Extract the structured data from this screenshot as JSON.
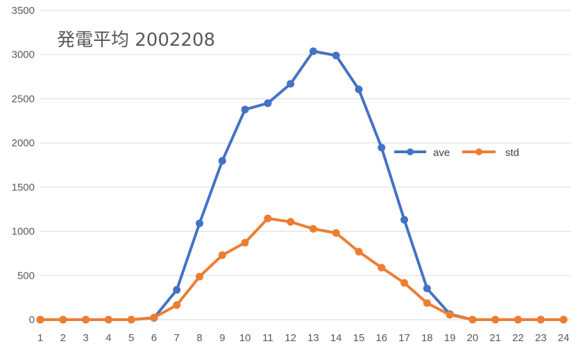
{
  "chart_data": {
    "type": "line",
    "title": "発電平均 2002208",
    "xlabel": "",
    "ylabel": "",
    "categories": [
      "1",
      "2",
      "3",
      "4",
      "5",
      "6",
      "7",
      "8",
      "9",
      "10",
      "11",
      "12",
      "13",
      "14",
      "15",
      "16",
      "17",
      "18",
      "19",
      "20",
      "21",
      "22",
      "23",
      "24"
    ],
    "ylim": [
      0,
      3500
    ],
    "yticks": [
      "0",
      "500",
      "1000",
      "1500",
      "2000",
      "2500",
      "3000",
      "3500"
    ],
    "grid": true,
    "legend_position": "right",
    "series": [
      {
        "name": "ave",
        "color": "#4472C4",
        "values": [
          0,
          0,
          0,
          0,
          0,
          20,
          337,
          1090,
          1797,
          2378,
          2449,
          2669,
          3038,
          2990,
          2606,
          1947,
          1130,
          353,
          63,
          0,
          0,
          0,
          0,
          0
        ]
      },
      {
        "name": "std",
        "color": "#ED7D31",
        "values": [
          0,
          0,
          0,
          0,
          0,
          24,
          165,
          487,
          730,
          871,
          1146,
          1107,
          1028,
          981,
          769,
          589,
          416,
          188,
          55,
          0,
          0,
          0,
          0,
          0
        ]
      }
    ]
  }
}
